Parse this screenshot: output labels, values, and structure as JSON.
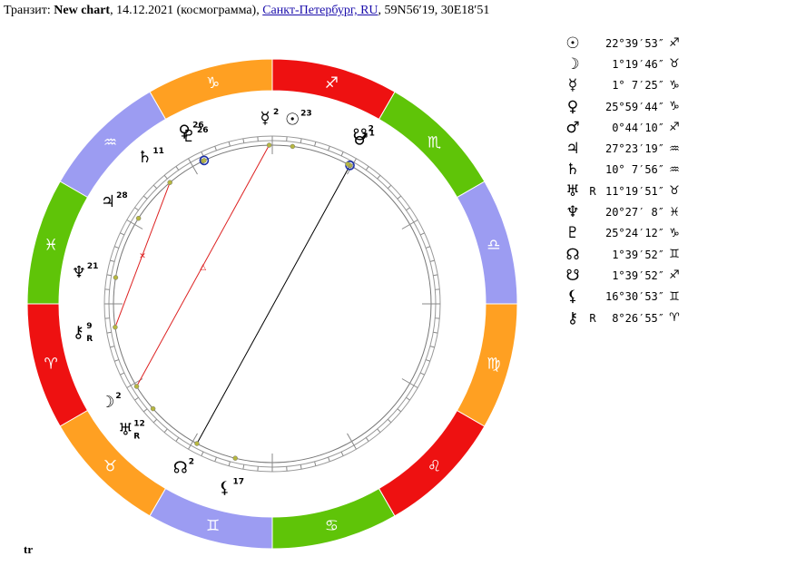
{
  "header": {
    "prefix": "Транзит: ",
    "chart_name": "New chart",
    "details": ", 14.12.2021 (космограмма), ",
    "location_link": "Санкт-Петербург, RU",
    "coordinates": ", 59N56′19, 30E18′51"
  },
  "footer_label": "tr",
  "colors": {
    "fire": "#ee1111",
    "earth": "#ffa022",
    "air": "#9c9cf2",
    "water": "#5fc408",
    "aspect_red": "#dd2222",
    "aspect_black": "#000000",
    "point": "#b6b640",
    "marker_blue": "#1a2fa8"
  },
  "zodiac": [
    {
      "name": "aries",
      "glyph": "♈",
      "element": "fire"
    },
    {
      "name": "taurus",
      "glyph": "♉",
      "element": "earth"
    },
    {
      "name": "gemini",
      "glyph": "♊",
      "element": "air"
    },
    {
      "name": "cancer",
      "glyph": "♋",
      "element": "water"
    },
    {
      "name": "leo",
      "glyph": "♌",
      "element": "fire"
    },
    {
      "name": "virgo",
      "glyph": "♍",
      "element": "earth"
    },
    {
      "name": "libra",
      "glyph": "♎",
      "element": "air"
    },
    {
      "name": "scorpio",
      "glyph": "♏",
      "element": "water"
    },
    {
      "name": "sagittarius",
      "glyph": "♐",
      "element": "fire"
    },
    {
      "name": "capricorn",
      "glyph": "♑",
      "element": "earth"
    },
    {
      "name": "aquarius",
      "glyph": "♒",
      "element": "air"
    },
    {
      "name": "pisces",
      "glyph": "♓",
      "element": "water"
    }
  ],
  "wheel_planets": [
    {
      "name": "sun",
      "glyph": "☉",
      "degree": "23",
      "retro": ""
    },
    {
      "name": "moon",
      "glyph": "☽",
      "degree": "2",
      "retro": ""
    },
    {
      "name": "mercury",
      "glyph": "☿",
      "degree": "2",
      "retro": ""
    },
    {
      "name": "venus",
      "glyph": "♀",
      "degree": "26",
      "retro": ""
    },
    {
      "name": "mars",
      "glyph": "♂",
      "degree": "1",
      "retro": ""
    },
    {
      "name": "jupiter",
      "glyph": "♃",
      "degree": "28",
      "retro": ""
    },
    {
      "name": "saturn",
      "glyph": "♄",
      "degree": "11",
      "retro": ""
    },
    {
      "name": "uranus",
      "glyph": "♅",
      "degree": "12",
      "retro": "R"
    },
    {
      "name": "neptune",
      "glyph": "♆",
      "degree": "21",
      "retro": ""
    },
    {
      "name": "pluto",
      "glyph": "♇",
      "degree": "26",
      "retro": ""
    },
    {
      "name": "north-node",
      "glyph": "☊",
      "degree": "2",
      "retro": ""
    },
    {
      "name": "south-node",
      "glyph": "☋",
      "degree": "2",
      "retro": ""
    },
    {
      "name": "lilith",
      "glyph": "⚸",
      "degree": "17",
      "retro": ""
    },
    {
      "name": "chiron",
      "glyph": "⚷",
      "degree": "9",
      "retro": "R"
    }
  ],
  "aspects": [
    {
      "from": "mercury",
      "to": "moon",
      "type": "opposition",
      "symbol": "△",
      "color": "aspect_red"
    },
    {
      "from": "saturn",
      "to": "chiron",
      "type": "sextile",
      "symbol": "✕",
      "color": "aspect_red"
    },
    {
      "from": "mars",
      "to": "north-node",
      "type": "conjunction",
      "symbol": "",
      "color": "aspect_black"
    }
  ],
  "planet_table": [
    {
      "name": "sun",
      "glyph": "☉",
      "retro": "",
      "position": "22°39′53″",
      "sign": "♐"
    },
    {
      "name": "moon",
      "glyph": "☽",
      "retro": "",
      "position": "1°19′46″",
      "sign": "♉"
    },
    {
      "name": "mercury",
      "glyph": "☿",
      "retro": "",
      "position": "1° 7′25″",
      "sign": "♑"
    },
    {
      "name": "venus",
      "glyph": "♀",
      "retro": "",
      "position": "25°59′44″",
      "sign": "♑"
    },
    {
      "name": "mars",
      "glyph": "♂",
      "retro": "",
      "position": "0°44′10″",
      "sign": "♐"
    },
    {
      "name": "jupiter",
      "glyph": "♃",
      "retro": "",
      "position": "27°23′19″",
      "sign": "♒"
    },
    {
      "name": "saturn",
      "glyph": "♄",
      "retro": "",
      "position": "10° 7′56″",
      "sign": "♒"
    },
    {
      "name": "uranus",
      "glyph": "♅",
      "retro": "R",
      "position": "11°19′51″",
      "sign": "♉"
    },
    {
      "name": "neptune",
      "glyph": "♆",
      "retro": "",
      "position": "20°27′ 8″",
      "sign": "♓"
    },
    {
      "name": "pluto",
      "glyph": "♇",
      "retro": "",
      "position": "25°24′12″",
      "sign": "♑"
    },
    {
      "name": "north-node",
      "glyph": "☊",
      "retro": "",
      "position": "1°39′52″",
      "sign": "♊"
    },
    {
      "name": "south-node",
      "glyph": "☋",
      "retro": "",
      "position": "1°39′52″",
      "sign": "♐"
    },
    {
      "name": "lilith",
      "glyph": "⚸",
      "retro": "",
      "position": "16°30′53″",
      "sign": "♊"
    },
    {
      "name": "chiron",
      "glyph": "⚷",
      "retro": "R",
      "position": "8°26′55″",
      "sign": "♈"
    }
  ]
}
